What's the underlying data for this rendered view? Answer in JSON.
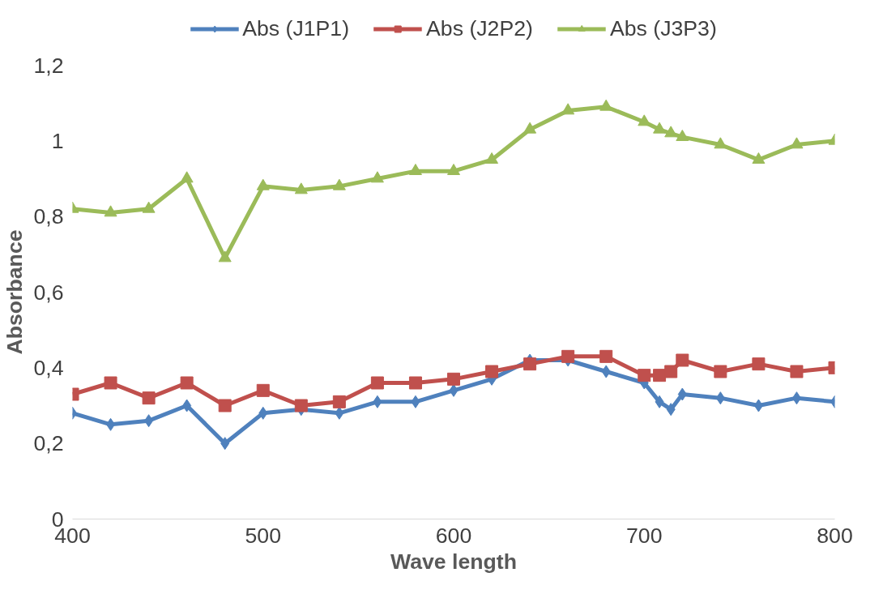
{
  "chart_data": {
    "type": "line",
    "xlabel": "Wave length",
    "ylabel": "Absorbance",
    "x": [
      400,
      420,
      440,
      460,
      480,
      500,
      520,
      540,
      560,
      580,
      600,
      620,
      640,
      660,
      680,
      700,
      708,
      714,
      720,
      740,
      760,
      780,
      800
    ],
    "series": [
      {
        "name": "Abs (J1P1)",
        "color": "#4f81bd",
        "marker": "diamond",
        "values": [
          0.28,
          0.25,
          0.26,
          0.3,
          0.2,
          0.28,
          0.29,
          0.28,
          0.31,
          0.31,
          0.34,
          0.37,
          0.42,
          0.42,
          0.39,
          0.36,
          0.31,
          0.29,
          0.33,
          0.32,
          0.3,
          0.32,
          0.31
        ]
      },
      {
        "name": "Abs (J2P2)",
        "color": "#c0504d",
        "marker": "square",
        "values": [
          0.33,
          0.36,
          0.32,
          0.36,
          0.3,
          0.34,
          0.3,
          0.31,
          0.36,
          0.36,
          0.37,
          0.39,
          0.41,
          0.43,
          0.43,
          0.38,
          0.38,
          0.39,
          0.42,
          0.39,
          0.41,
          0.39,
          0.4
        ]
      },
      {
        "name": "Abs (J3P3)",
        "color": "#9bbb59",
        "marker": "triangle",
        "values": [
          0.82,
          0.81,
          0.82,
          0.9,
          0.69,
          0.88,
          0.87,
          0.88,
          0.9,
          0.92,
          0.92,
          0.95,
          1.03,
          1.08,
          1.09,
          1.05,
          1.03,
          1.02,
          1.01,
          0.99,
          0.95,
          0.99,
          1.0
        ]
      }
    ],
    "xlim": [
      400,
      800
    ],
    "xticks": [
      400,
      500,
      600,
      700,
      800
    ],
    "ylim": [
      0,
      1.2
    ],
    "yticks": [
      0,
      {
        "value": 0.2,
        "label": "0,2"
      },
      {
        "value": 0.4,
        "label": "0,4"
      },
      {
        "value": 0.6,
        "label": "0,6"
      },
      {
        "value": 0.8,
        "label": "0,8"
      },
      1,
      {
        "value": 1.2,
        "label": "1,2"
      }
    ],
    "grid": false,
    "legend": "top",
    "line_style": "solid"
  }
}
